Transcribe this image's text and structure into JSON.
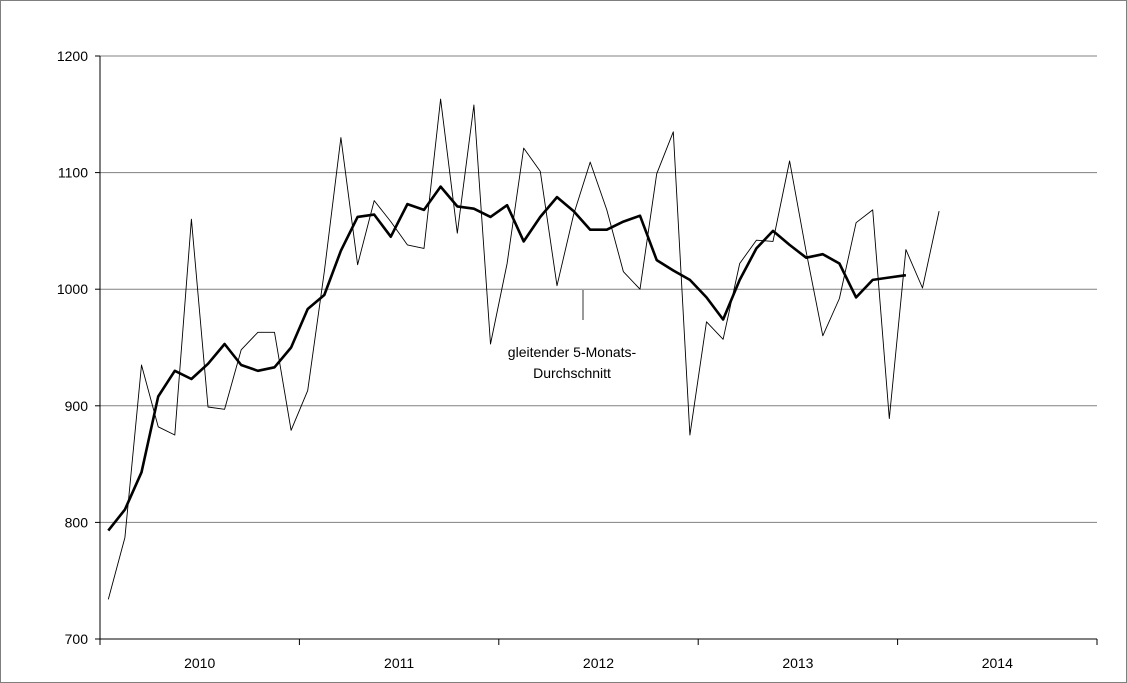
{
  "chart_data": {
    "type": "line",
    "title": "",
    "xlabel": "",
    "ylabel": "",
    "ylim": [
      700,
      1200
    ],
    "yticks": [
      700,
      800,
      900,
      1000,
      1100,
      1200
    ],
    "grid": "horizontal",
    "year_labels": [
      "2010",
      "2011",
      "2012",
      "2013",
      "2014"
    ],
    "x_start": "2010-01",
    "x_end": "2014-12",
    "annotation": {
      "lines": [
        "gleitender 5-Monats-",
        "Durchschnitt"
      ]
    },
    "series": [
      {
        "style": "thin",
        "color": "#000000",
        "values": [
          734,
          787,
          935,
          882,
          875,
          1060,
          899,
          897,
          948,
          963,
          963,
          879,
          913,
          1015,
          1130,
          1021,
          1076,
          1058,
          1038,
          1035,
          1163,
          1048,
          1158,
          953,
          1022,
          1121,
          1101,
          1003,
          1064,
          1109,
          1068,
          1015,
          1000,
          1099,
          1135,
          875,
          972,
          957,
          1022,
          1042,
          1041,
          1110,
          1032,
          960,
          992,
          1057,
          1068,
          889,
          1034,
          1001,
          1067
        ]
      },
      {
        "style": "bold",
        "color": "#000000",
        "values": [
          793,
          811,
          843,
          908,
          930,
          923,
          936,
          953,
          935,
          930,
          933,
          950,
          983,
          995,
          1033,
          1062,
          1064,
          1045,
          1073,
          1068,
          1088,
          1071,
          1069,
          1062,
          1072,
          1041,
          1062,
          1079,
          1067,
          1051,
          1051,
          1058,
          1063,
          1025,
          1016,
          1008,
          993,
          974,
          1008,
          1035,
          1050,
          1038,
          1027,
          1030,
          1022,
          993,
          1008,
          1010,
          1012
        ]
      }
    ]
  }
}
